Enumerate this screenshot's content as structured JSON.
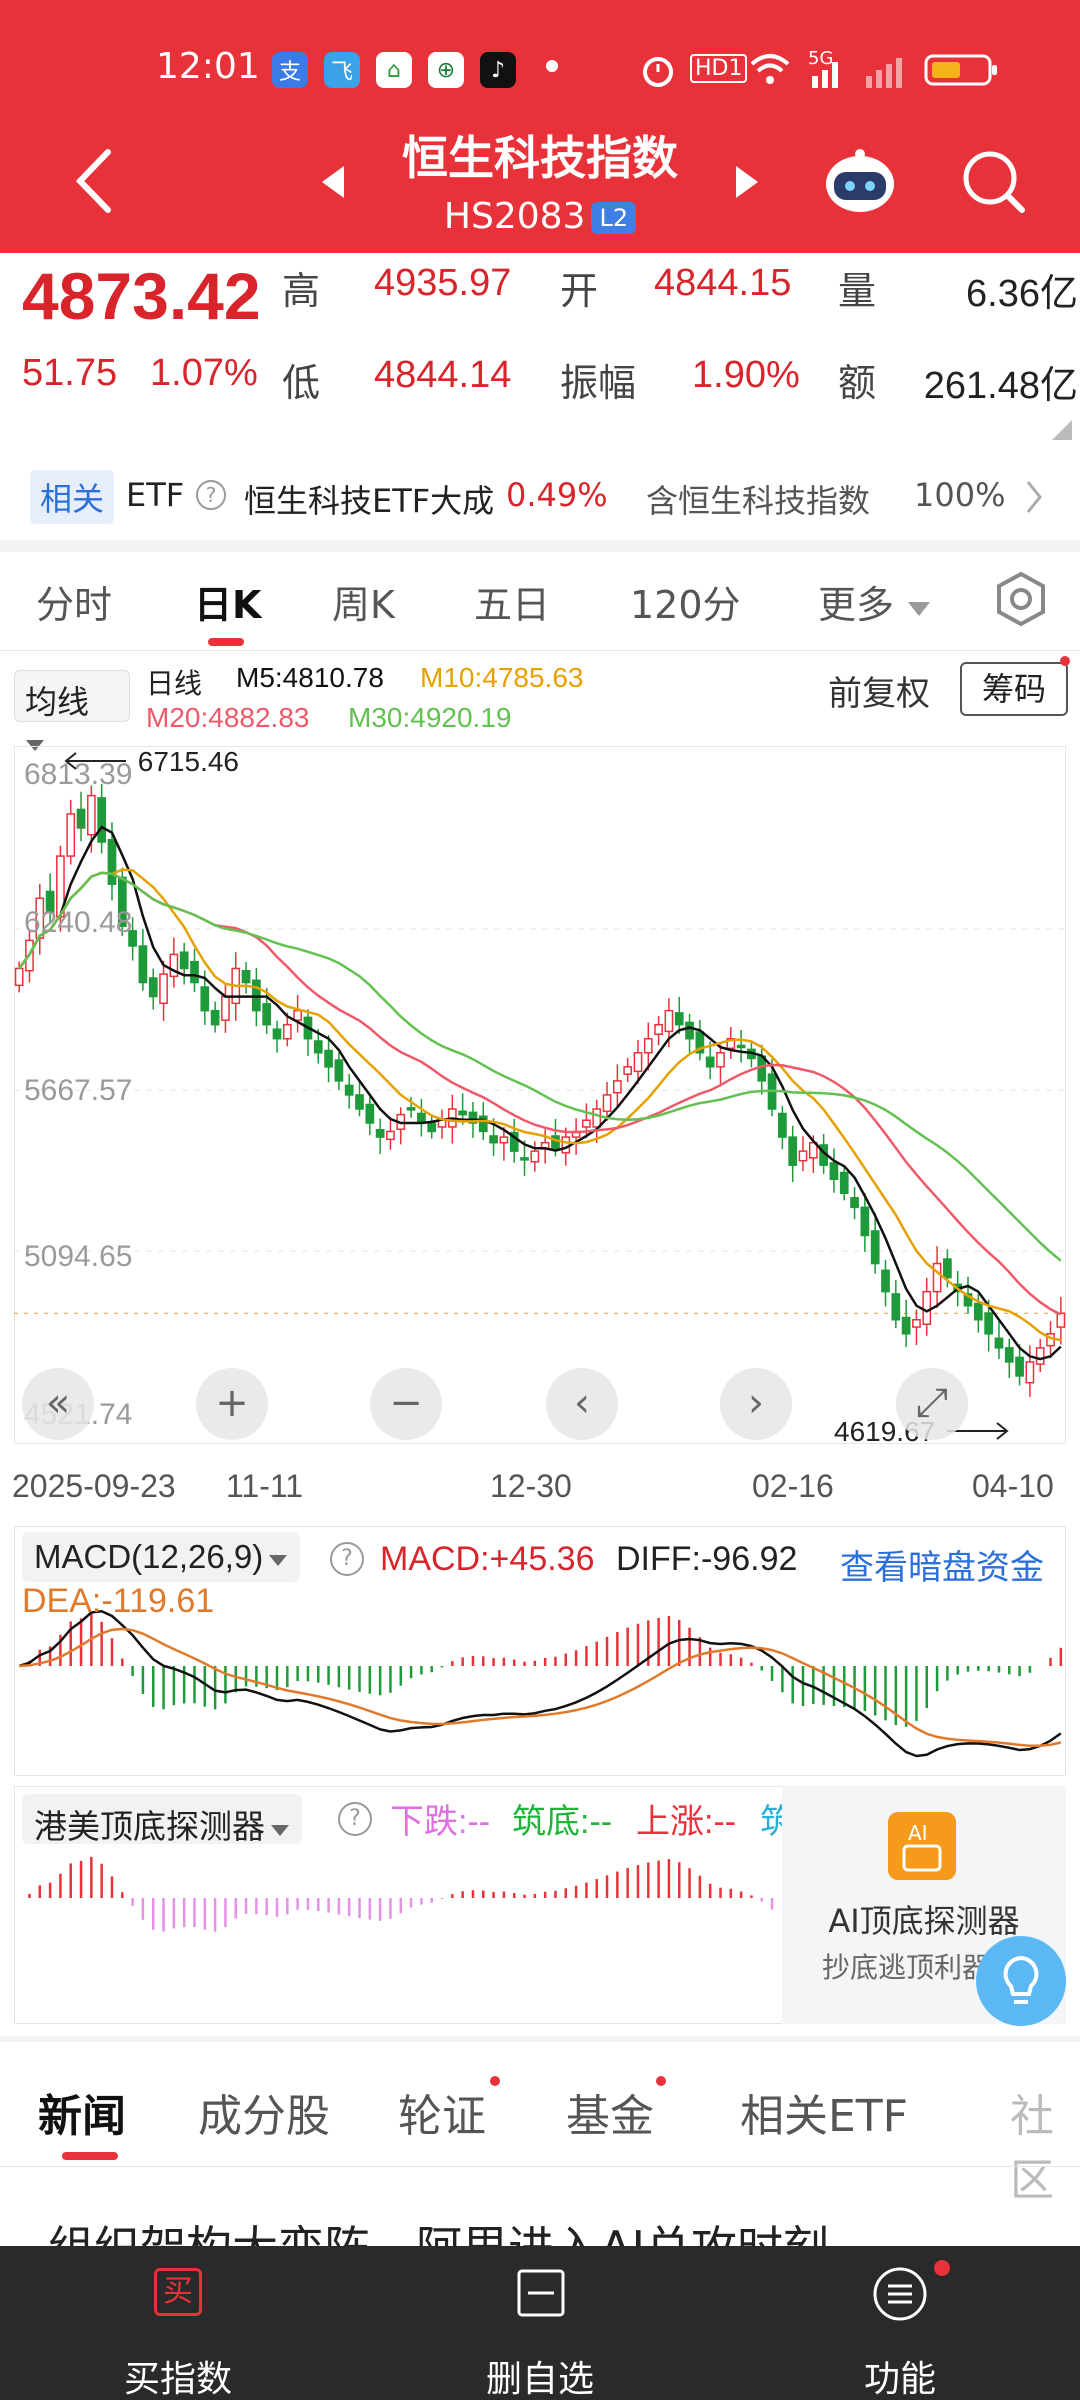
{
  "status_bar": {
    "time": "12:01",
    "apps": [
      "支",
      "飞",
      "⌂",
      "⊕",
      "♪"
    ],
    "network": "5G",
    "hd": "HD1"
  },
  "header": {
    "title": "恒生科技指数",
    "code": "HS2083",
    "level_badge": "L2"
  },
  "quote": {
    "price": "4873.42",
    "change": "51.75",
    "change_pct": "1.07%",
    "labels": {
      "high": "高",
      "open": "开",
      "volume": "量",
      "low": "低",
      "amplitude": "振幅",
      "amount": "额"
    },
    "high": "4935.97",
    "open": "4844.15",
    "volume": "6.36亿",
    "low": "4844.14",
    "amplitude": "1.90%",
    "amount": "261.48亿"
  },
  "etf": {
    "tag": "相关",
    "label": "ETF",
    "help_icon": "?",
    "name": "恒生科技ETF大成",
    "change": "0.49%",
    "contains": "含恒生科技指数",
    "weight": "100%"
  },
  "tabs": [
    "分时",
    "日K",
    "周K",
    "五日",
    "120分",
    "更多"
  ],
  "ma_legend": {
    "selector": "均线",
    "kind": "日线",
    "m5": "M5:4810.78",
    "m10": "M10:4785.63",
    "m20": "M20:4882.83",
    "m30": "M30:4920.19",
    "adjust": "前复权",
    "chips": "筹码"
  },
  "chart": {
    "y_ticks": [
      "6813.39",
      "6240.48",
      "5667.57",
      "5094.65",
      "4521.74"
    ],
    "high_marker": "6715.46",
    "low_marker": "4619.67",
    "dates": [
      "2025-09-23",
      "11-11",
      "12-30",
      "02-16",
      "04-10"
    ],
    "controls": [
      "«",
      "+",
      "−",
      "‹",
      "›",
      "⤢"
    ],
    "colors": {
      "up": "#e8323a",
      "down": "#1f9a3a",
      "m5": "#111111",
      "m10": "#e6a100",
      "m20": "#ee5a6a",
      "m30": "#62c150"
    }
  },
  "chart_data": {
    "type": "candlestick",
    "title": "",
    "ylim": [
      4521.74,
      6813.39
    ],
    "x_labels": [
      "2025-09-23",
      "11-11",
      "12-30",
      "02-16",
      "04-10"
    ],
    "series": [
      {
        "name": "M5",
        "value": 4810.78
      },
      {
        "name": "M10",
        "value": 4785.63
      },
      {
        "name": "M20",
        "value": 4882.83
      },
      {
        "name": "M30",
        "value": 4920.19
      }
    ],
    "close": [
      6100,
      6200,
      6350,
      6300,
      6500,
      6650,
      6600,
      6715,
      6550,
      6400,
      6250,
      6180,
      6050,
      6000,
      6080,
      6150,
      6100,
      6050,
      5950,
      5900,
      6000,
      6100,
      6050,
      5950,
      5900,
      5850,
      5900,
      5950,
      5850,
      5800,
      5750,
      5700,
      5650,
      5600,
      5550,
      5500,
      5520,
      5580,
      5600,
      5550,
      5520,
      5560,
      5600,
      5580,
      5550,
      5520,
      5480,
      5500,
      5450,
      5420,
      5450,
      5480,
      5460,
      5500,
      5520,
      5560,
      5600,
      5650,
      5700,
      5750,
      5800,
      5850,
      5900,
      5950,
      5900,
      5850,
      5800,
      5750,
      5800,
      5850,
      5820,
      5780,
      5700,
      5600,
      5500,
      5400,
      5450,
      5480,
      5400,
      5350,
      5300,
      5250,
      5150,
      5050,
      4950,
      4850,
      4800,
      4850,
      4950,
      5050,
      5000,
      4950,
      4900,
      4850,
      4800,
      4750,
      4700,
      4650,
      4700,
      4750,
      4800,
      4873
    ],
    "macd": {
      "params": "MACD(12,26,9)",
      "macd": 45.36,
      "diff": -96.92,
      "dea": -119.61
    }
  },
  "macd_panel": {
    "selector": "MACD(12,26,9)",
    "macd": "MACD:+45.36",
    "diff": "DIFF:-96.92",
    "dea": "DEA:-119.61",
    "link": "查看暗盘资金"
  },
  "detector": {
    "selector": "港美顶底探测器",
    "fall": "下跌:--",
    "bottom": "筑底:--",
    "rise": "上涨:--",
    "top": "筑顶:--",
    "card_title": "AI顶底探测器",
    "card_sub": "抄底逃顶利器"
  },
  "news_tabs": [
    "新闻",
    "成分股",
    "轮证",
    "基金",
    "相关ETF",
    "社区"
  ],
  "headline": "组织架构大变阵，阿里进入AI总攻时刻",
  "bottom_bar": {
    "buy": "买指数",
    "buy_icon": "买",
    "remove": "删自选",
    "functions": "功能"
  }
}
